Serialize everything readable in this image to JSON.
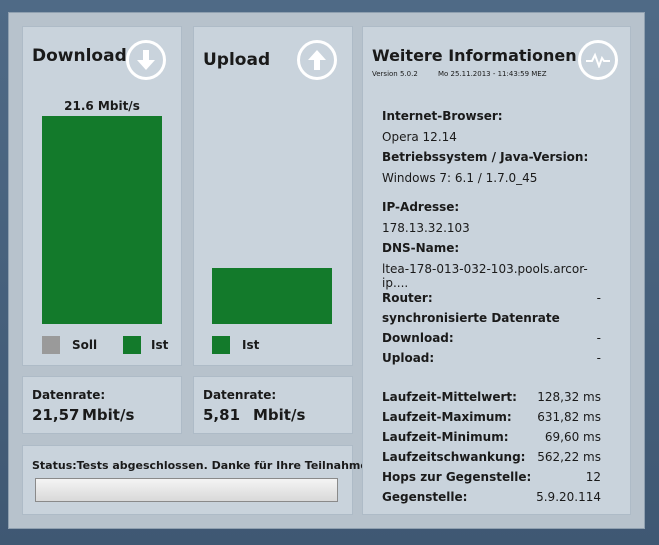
{
  "download": {
    "title": "Download",
    "speed_label": "21.6 Mbit/s",
    "legend_soll": "Soll",
    "legend_ist": "Ist",
    "datenrate_label": "Datenrate:",
    "datenrate_value": "21,57",
    "datenrate_unit": "Mbit/s",
    "bar_level": 1.0
  },
  "upload": {
    "title": "Upload",
    "legend_ist": "Ist",
    "datenrate_label": "Datenrate:",
    "datenrate_value": "5,81",
    "datenrate_unit": "Mbit/s",
    "bar_level": 0.27
  },
  "status": {
    "text": "Status:Tests abgeschlossen. Danke für Ihre Teilnahme!"
  },
  "info": {
    "title": "Weitere Informationen",
    "version": "Version 5.0.2",
    "timestamp": "Mo 25.11.2013 - 11:43:59 MEZ",
    "browser_label": "Internet-Browser:",
    "browser_value": "Opera 12.14",
    "os_label": "Betriebssystem / Java-Version:",
    "os_value": "Windows 7: 6.1 / 1.7.0_45",
    "ip_label": "IP-Adresse:",
    "ip_value": "178.13.32.103",
    "dns_label": "DNS-Name:",
    "dns_value": "ltea-178-013-032-103.pools.arcor-ip....",
    "router_label": "Router:",
    "router_value": "-",
    "sync_label": "synchronisierte Datenrate",
    "sync_download_label": "Download:",
    "sync_download_value": "-",
    "sync_upload_label": "Upload:",
    "sync_upload_value": "-",
    "lat_avg_label": "Laufzeit-Mittelwert:",
    "lat_avg_value": "128,32 ms",
    "lat_max_label": "Laufzeit-Maximum:",
    "lat_max_value": "631,82 ms",
    "lat_min_label": "Laufzeit-Minimum:",
    "lat_min_value": "69,60 ms",
    "jitter_label": "Laufzeitschwankung:",
    "jitter_value": "562,22 ms",
    "hops_label": "Hops zur Gegenstelle:",
    "hops_value": "12",
    "peer_label": "Gegenstelle:",
    "peer_value": "5.9.20.114"
  },
  "colors": {
    "bar_ist": "#137a2b",
    "legend_soll": "#9a9a9a",
    "panel": "#c9d3dc"
  },
  "icons": {
    "download": "arrow-down-circle-icon",
    "upload": "arrow-up-circle-icon",
    "info": "heartbeat-circle-icon"
  }
}
